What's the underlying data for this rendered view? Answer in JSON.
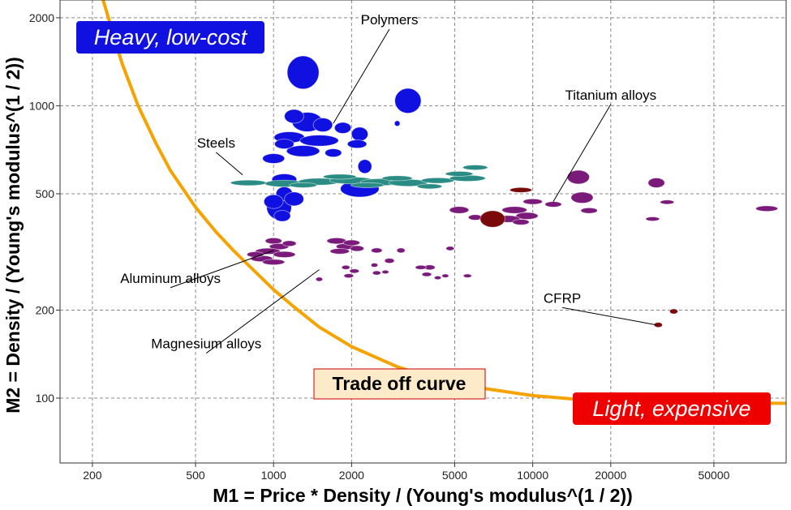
{
  "chart_data": {
    "type": "scatter",
    "xlabel": "M1 = Price * Density / (Young's modulus^(1 / 2))",
    "ylabel": "M2 = Density / (Young's modulus^(1 / 2))",
    "x_scale": "log",
    "y_scale": "log",
    "xlim": [
      150,
      95000
    ],
    "ylim": [
      60,
      2300
    ],
    "x_ticks": [
      200,
      500,
      1000,
      2000,
      5000,
      10000,
      20000,
      50000
    ],
    "x_tick_labels": [
      "200",
      "500",
      "1000",
      "2000",
      "5000",
      "10000",
      "20000",
      "50000"
    ],
    "y_ticks": [
      100,
      200,
      500,
      1000,
      2000
    ],
    "y_tick_labels": [
      "100",
      "200",
      "500",
      "1000",
      "2000"
    ],
    "grid": true,
    "colors": {
      "polymers": "#1010e0",
      "steels": "#2a8c84",
      "aluminum": "#7a1a7a",
      "magnesium": "#7a1a7a",
      "titanium": "#7a1a7a",
      "cfrp": "#7a0a0a",
      "curve": "#f5a300",
      "heavy_box": "#1010e0",
      "light_box": "#ee0000",
      "tradeoff_box": "#fdeac8"
    },
    "regions": {
      "top_left": "Heavy, low-cost",
      "bottom_right": "Light, expensive"
    },
    "curve_label": "Trade off curve",
    "trade_off_curve": [
      [
        220,
        2300
      ],
      [
        260,
        1400
      ],
      [
        300,
        1000
      ],
      [
        350,
        750
      ],
      [
        400,
        600
      ],
      [
        500,
        450
      ],
      [
        600,
        370
      ],
      [
        700,
        320
      ],
      [
        800,
        285
      ],
      [
        1000,
        235
      ],
      [
        1200,
        205
      ],
      [
        1500,
        175
      ],
      [
        2000,
        150
      ],
      [
        3000,
        128
      ],
      [
        4000,
        118
      ],
      [
        6000,
        109
      ],
      [
        10000,
        102
      ],
      [
        15000,
        99
      ],
      [
        20000,
        97
      ],
      [
        30000,
        96
      ],
      [
        95000,
        96
      ]
    ],
    "annotations": [
      {
        "text": "Polymers",
        "label_at": [
          2800,
          1900
        ],
        "point_to": [
          1700,
          870
        ]
      },
      {
        "text": "Titanium alloys",
        "label_at": [
          20000,
          1050
        ],
        "point_to": [
          12000,
          470
        ]
      },
      {
        "text": "Steels",
        "label_at": [
          600,
          720
        ],
        "point_to": [
          760,
          580
        ]
      },
      {
        "text": "Aluminum alloys",
        "label_at": [
          400,
          248
        ],
        "point_to": [
          1000,
          320
        ]
      },
      {
        "text": "Magnesium alloys",
        "label_at": [
          550,
          148
        ],
        "point_to": [
          1500,
          275
        ]
      },
      {
        "text": "CFRP",
        "label_at": [
          13000,
          212
        ],
        "point_to": [
          30000,
          178
        ]
      }
    ],
    "series": [
      {
        "name": "Polymers",
        "points": [
          {
            "x": 1300,
            "y": 1300,
            "rx": 1.15,
            "ry": 1.2
          },
          {
            "x": 3300,
            "y": 1040,
            "rx": 0.95,
            "ry": 0.9
          },
          {
            "x": 1350,
            "y": 880,
            "rx": 1.1,
            "ry": 0.7
          },
          {
            "x": 1200,
            "y": 920,
            "rx": 0.7,
            "ry": 0.5
          },
          {
            "x": 1550,
            "y": 860,
            "rx": 0.7,
            "ry": 0.5
          },
          {
            "x": 1850,
            "y": 840,
            "rx": 0.6,
            "ry": 0.4
          },
          {
            "x": 2150,
            "y": 800,
            "rx": 0.6,
            "ry": 0.5
          },
          {
            "x": 1150,
            "y": 780,
            "rx": 1.1,
            "ry": 0.4
          },
          {
            "x": 1500,
            "y": 760,
            "rx": 1.4,
            "ry": 0.4
          },
          {
            "x": 1300,
            "y": 700,
            "rx": 1.2,
            "ry": 0.4
          },
          {
            "x": 1100,
            "y": 740,
            "rx": 0.7,
            "ry": 0.35
          },
          {
            "x": 1700,
            "y": 690,
            "rx": 0.6,
            "ry": 0.3
          },
          {
            "x": 2100,
            "y": 740,
            "rx": 0.7,
            "ry": 0.3
          },
          {
            "x": 1000,
            "y": 660,
            "rx": 0.8,
            "ry": 0.35
          },
          {
            "x": 2250,
            "y": 620,
            "rx": 0.5,
            "ry": 0.5
          },
          {
            "x": 3000,
            "y": 870,
            "rx": 0.2,
            "ry": 0.2
          },
          {
            "x": 1100,
            "y": 560,
            "rx": 0.9,
            "ry": 0.4
          },
          {
            "x": 2150,
            "y": 520,
            "rx": 1.4,
            "ry": 0.6
          },
          {
            "x": 1050,
            "y": 450,
            "rx": 0.9,
            "ry": 0.9
          },
          {
            "x": 1100,
            "y": 500,
            "rx": 0.6,
            "ry": 0.5
          },
          {
            "x": 1000,
            "y": 470,
            "rx": 0.7,
            "ry": 0.5
          },
          {
            "x": 1200,
            "y": 480,
            "rx": 0.7,
            "ry": 0.5
          },
          {
            "x": 1080,
            "y": 420,
            "rx": 0.6,
            "ry": 0.4
          }
        ]
      },
      {
        "name": "Steels",
        "points": [
          {
            "x": 800,
            "y": 545,
            "rx": 1.3,
            "ry": 0.2
          },
          {
            "x": 1100,
            "y": 542,
            "rx": 1.4,
            "ry": 0.25
          },
          {
            "x": 1500,
            "y": 550,
            "rx": 1.5,
            "ry": 0.25
          },
          {
            "x": 2000,
            "y": 555,
            "rx": 1.6,
            "ry": 0.25
          },
          {
            "x": 2600,
            "y": 548,
            "rx": 1.5,
            "ry": 0.25
          },
          {
            "x": 3300,
            "y": 545,
            "rx": 1.4,
            "ry": 0.25
          },
          {
            "x": 4300,
            "y": 555,
            "rx": 1.2,
            "ry": 0.2
          },
          {
            "x": 5600,
            "y": 565,
            "rx": 1.3,
            "ry": 0.22
          },
          {
            "x": 6000,
            "y": 615,
            "rx": 0.9,
            "ry": 0.18
          },
          {
            "x": 1800,
            "y": 572,
            "rx": 1.2,
            "ry": 0.18
          },
          {
            "x": 1300,
            "y": 535,
            "rx": 1.0,
            "ry": 0.18
          },
          {
            "x": 3000,
            "y": 565,
            "rx": 1.1,
            "ry": 0.18
          },
          {
            "x": 4000,
            "y": 530,
            "rx": 0.9,
            "ry": 0.18
          },
          {
            "x": 5200,
            "y": 585,
            "rx": 1.0,
            "ry": 0.18
          },
          {
            "x": 2300,
            "y": 535,
            "rx": 1.2,
            "ry": 0.18
          }
        ]
      },
      {
        "name": "Aluminum alloys",
        "points": [
          {
            "x": 1000,
            "y": 345,
            "rx": 0.6,
            "ry": 0.22
          },
          {
            "x": 1050,
            "y": 330,
            "rx": 0.7,
            "ry": 0.22
          },
          {
            "x": 950,
            "y": 318,
            "rx": 0.9,
            "ry": 0.22
          },
          {
            "x": 1100,
            "y": 310,
            "rx": 0.8,
            "ry": 0.22
          },
          {
            "x": 900,
            "y": 300,
            "rx": 0.8,
            "ry": 0.22
          },
          {
            "x": 1000,
            "y": 292,
            "rx": 0.8,
            "ry": 0.2
          },
          {
            "x": 850,
            "y": 310,
            "rx": 0.6,
            "ry": 0.2
          },
          {
            "x": 1150,
            "y": 338,
            "rx": 0.5,
            "ry": 0.2
          },
          {
            "x": 1750,
            "y": 345,
            "rx": 0.7,
            "ry": 0.22
          },
          {
            "x": 1900,
            "y": 330,
            "rx": 0.7,
            "ry": 0.22
          },
          {
            "x": 1800,
            "y": 318,
            "rx": 0.7,
            "ry": 0.2
          },
          {
            "x": 2000,
            "y": 340,
            "rx": 0.6,
            "ry": 0.2
          },
          {
            "x": 2100,
            "y": 325,
            "rx": 0.5,
            "ry": 0.2
          },
          {
            "x": 2500,
            "y": 320,
            "rx": 0.4,
            "ry": 0.18
          },
          {
            "x": 2800,
            "y": 295,
            "rx": 0.35,
            "ry": 0.18
          },
          {
            "x": 3100,
            "y": 320,
            "rx": 0.3,
            "ry": 0.18
          },
          {
            "x": 4000,
            "y": 280,
            "rx": 0.4,
            "ry": 0.18
          }
        ]
      },
      {
        "name": "Magnesium alloys",
        "points": [
          {
            "x": 1500,
            "y": 255,
            "rx": 0.25,
            "ry": 0.15
          },
          {
            "x": 1950,
            "y": 262,
            "rx": 0.35,
            "ry": 0.15
          },
          {
            "x": 2050,
            "y": 272,
            "rx": 0.35,
            "ry": 0.15
          },
          {
            "x": 1900,
            "y": 280,
            "rx": 0.3,
            "ry": 0.15
          },
          {
            "x": 2450,
            "y": 285,
            "rx": 0.25,
            "ry": 0.15
          },
          {
            "x": 2500,
            "y": 268,
            "rx": 0.3,
            "ry": 0.15
          },
          {
            "x": 2700,
            "y": 270,
            "rx": 0.25,
            "ry": 0.13
          },
          {
            "x": 3700,
            "y": 280,
            "rx": 0.4,
            "ry": 0.15
          },
          {
            "x": 3900,
            "y": 265,
            "rx": 0.35,
            "ry": 0.15
          },
          {
            "x": 4300,
            "y": 258,
            "rx": 0.25,
            "ry": 0.13
          },
          {
            "x": 4600,
            "y": 262,
            "rx": 0.25,
            "ry": 0.13
          },
          {
            "x": 4800,
            "y": 325,
            "rx": 0.3,
            "ry": 0.15
          },
          {
            "x": 5600,
            "y": 262,
            "rx": 0.3,
            "ry": 0.13
          }
        ]
      },
      {
        "name": "Titanium alloys",
        "points": [
          {
            "x": 15000,
            "y": 570,
            "rx": 0.8,
            "ry": 0.5
          },
          {
            "x": 15500,
            "y": 485,
            "rx": 0.8,
            "ry": 0.4
          },
          {
            "x": 30000,
            "y": 545,
            "rx": 0.6,
            "ry": 0.35
          },
          {
            "x": 33000,
            "y": 468,
            "rx": 0.5,
            "ry": 0.15
          },
          {
            "x": 29000,
            "y": 410,
            "rx": 0.5,
            "ry": 0.15
          },
          {
            "x": 16500,
            "y": 438,
            "rx": 0.6,
            "ry": 0.2
          },
          {
            "x": 80000,
            "y": 445,
            "rx": 0.8,
            "ry": 0.2
          },
          {
            "x": 5200,
            "y": 440,
            "rx": 0.7,
            "ry": 0.25
          },
          {
            "x": 6000,
            "y": 415,
            "rx": 0.5,
            "ry": 0.2
          },
          {
            "x": 8500,
            "y": 440,
            "rx": 0.9,
            "ry": 0.25
          },
          {
            "x": 9500,
            "y": 420,
            "rx": 0.8,
            "ry": 0.25
          },
          {
            "x": 10000,
            "y": 470,
            "rx": 0.7,
            "ry": 0.2
          },
          {
            "x": 8000,
            "y": 410,
            "rx": 0.9,
            "ry": 0.25
          },
          {
            "x": 9000,
            "y": 400,
            "rx": 0.6,
            "ry": 0.2
          },
          {
            "x": 12000,
            "y": 460,
            "rx": 0.6,
            "ry": 0.2
          }
        ]
      },
      {
        "name": "CFRP",
        "points": [
          {
            "x": 7000,
            "y": 410,
            "rx": 0.9,
            "ry": 0.6
          },
          {
            "x": 9000,
            "y": 515,
            "rx": 0.8,
            "ry": 0.18
          },
          {
            "x": 30500,
            "y": 178,
            "rx": 0.3,
            "ry": 0.18
          },
          {
            "x": 35000,
            "y": 198,
            "rx": 0.3,
            "ry": 0.18
          }
        ]
      }
    ]
  }
}
